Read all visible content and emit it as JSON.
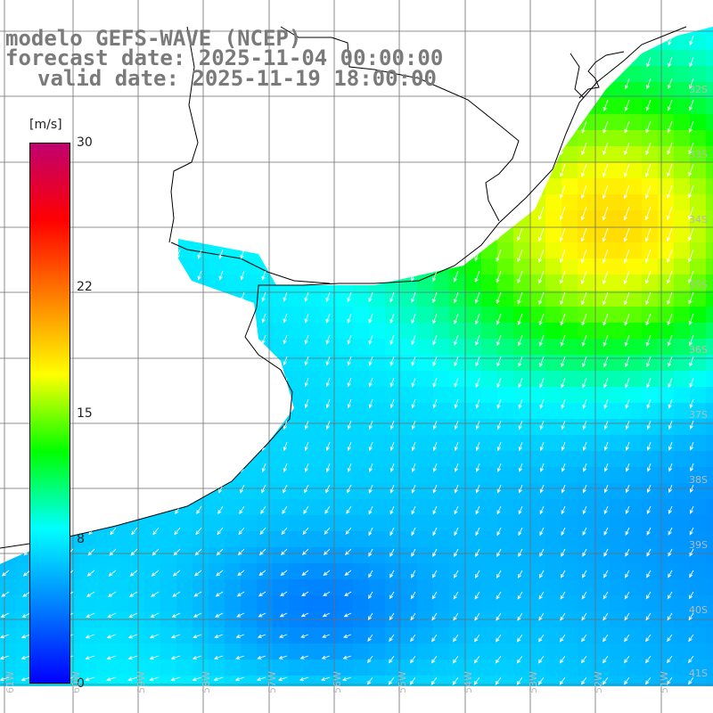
{
  "titles": {
    "line1": "modelo GEFS-WAVE (NCEP)",
    "line2": "forecast date: 2025-11-04 00:00:00",
    "line3": "valid date: 2025-11-19 18:00:00"
  },
  "colorbar": {
    "unit": "[m/s]",
    "min": 0,
    "max": 30,
    "ticks": [
      "30",
      "22",
      "15",
      "8",
      "0"
    ],
    "tick_values": [
      30,
      22,
      15,
      8,
      0
    ],
    "stops": [
      "#0000ff",
      "#0080ff",
      "#00ffff",
      "#00ff00",
      "#ffff00",
      "#ff8000",
      "#ff0000",
      "#c0006f"
    ]
  },
  "lat_labels": [
    "32S",
    "33S",
    "34S",
    "35S",
    "36S",
    "37S",
    "38S",
    "39S",
    "40S",
    "41S"
  ],
  "lon_labels": [
    "61W",
    "60W",
    "59W",
    "58W",
    "57W",
    "56W",
    "55W",
    "54W",
    "53W",
    "52W",
    "51W"
  ],
  "colors": {
    "land": "#ffffff",
    "coastline": "#000000",
    "grid": "#6e6e6e",
    "arrows": "#ffffff",
    "title": "#7a7a7a",
    "axis_labels": "#b9b9b9"
  }
}
